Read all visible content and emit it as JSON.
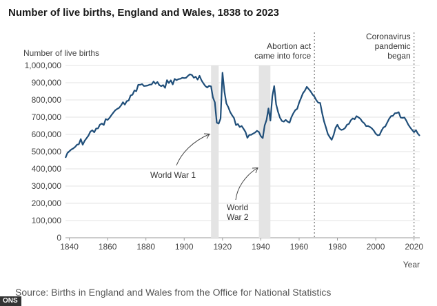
{
  "chart_data": {
    "type": "line",
    "title": "Number of live births, England and Wales, 1838 to 2023",
    "ylabel": "Number of live births",
    "xlabel": "Year",
    "xlim": [
      1838,
      2023
    ],
    "ylim": [
      0,
      1000000
    ],
    "x_ticks": [
      1840,
      1860,
      1880,
      1900,
      1920,
      1940,
      1960,
      1980,
      2000,
      2020
    ],
    "x_tick_labels": [
      "1840",
      "1860",
      "1880",
      "1900",
      "1920",
      "1940",
      "1960",
      "1980",
      "2000",
      "2020"
    ],
    "y_ticks": [
      0,
      100000,
      200000,
      300000,
      400000,
      500000,
      600000,
      700000,
      800000,
      900000,
      1000000
    ],
    "y_tick_labels": [
      "0",
      "100,000",
      "200,000",
      "300,000",
      "400,000",
      "500,000",
      "600,000",
      "700,000",
      "800,000",
      "900,000",
      "1,000,000"
    ],
    "grid": "horizontal",
    "line_color": "#1f4e79",
    "series": [
      {
        "x": [
          1838,
          1839,
          1840,
          1841,
          1842,
          1843,
          1844,
          1845,
          1846,
          1847,
          1848,
          1849,
          1850,
          1851,
          1852,
          1853,
          1854,
          1855,
          1856,
          1857,
          1858,
          1859,
          1860,
          1861,
          1862,
          1863,
          1864,
          1865,
          1866,
          1867,
          1868,
          1869,
          1870,
          1871,
          1872,
          1873,
          1874,
          1875,
          1876,
          1877,
          1878,
          1879,
          1880,
          1881,
          1882,
          1883,
          1884,
          1885,
          1886,
          1887,
          1888,
          1889,
          1890,
          1891,
          1892,
          1893,
          1894,
          1895,
          1896,
          1897,
          1898,
          1899,
          1900,
          1901,
          1902,
          1903,
          1904,
          1905,
          1906,
          1907,
          1908,
          1909,
          1910,
          1911,
          1912,
          1913,
          1914,
          1915,
          1916,
          1917,
          1918,
          1919,
          1920,
          1921,
          1922,
          1923,
          1924,
          1925,
          1926,
          1927,
          1928,
          1929,
          1930,
          1931,
          1932,
          1933,
          1934,
          1935,
          1936,
          1937,
          1938,
          1939,
          1940,
          1941,
          1942,
          1943,
          1944,
          1945,
          1946,
          1947,
          1948,
          1949,
          1950,
          1951,
          1952,
          1953,
          1954,
          1955,
          1956,
          1957,
          1958,
          1959,
          1960,
          1961,
          1962,
          1963,
          1964,
          1965,
          1966,
          1967,
          1968,
          1969,
          1970,
          1971,
          1972,
          1973,
          1974,
          1975,
          1976,
          1977,
          1978,
          1979,
          1980,
          1981,
          1982,
          1983,
          1984,
          1985,
          1986,
          1987,
          1988,
          1989,
          1990,
          1991,
          1992,
          1993,
          1994,
          1995,
          1996,
          1997,
          1998,
          1999,
          2000,
          2001,
          2002,
          2003,
          2004,
          2005,
          2006,
          2007,
          2008,
          2009,
          2010,
          2011,
          2012,
          2013,
          2014,
          2015,
          2016,
          2017,
          2018,
          2019,
          2020,
          2021,
          2022,
          2023
        ],
        "values": [
          464000,
          492000,
          502000,
          512000,
          518000,
          527000,
          540000,
          543000,
          573000,
          540000,
          563000,
          578000,
          593000,
          616000,
          624000,
          612000,
          634000,
          635000,
          657000,
          663000,
          655000,
          689000,
          684000,
          696000,
          712000,
          727000,
          740000,
          748000,
          754000,
          768000,
          787000,
          773000,
          793000,
          797000,
          826000,
          830000,
          855000,
          851000,
          888000,
          888000,
          892000,
          881000,
          882000,
          884000,
          889000,
          890000,
          907000,
          894000,
          904000,
          886000,
          880000,
          886000,
          870000,
          915000,
          898000,
          914000,
          890000,
          922000,
          915000,
          921000,
          923000,
          929000,
          927000,
          929000,
          940000,
          949000,
          945000,
          929000,
          935000,
          918000,
          940000,
          914000,
          897000,
          881000,
          872000,
          882000,
          879000,
          815000,
          786000,
          668000,
          663000,
          692000,
          958000,
          849000,
          780000,
          758000,
          730000,
          711000,
          695000,
          654000,
          660000,
          643000,
          649000,
          632000,
          614000,
          580000,
          597000,
          598000,
          605000,
          611000,
          621000,
          614000,
          590000,
          579000,
          652000,
          684000,
          751000,
          680000,
          821000,
          881000,
          775000,
          731000,
          697000,
          678000,
          674000,
          684000,
          674000,
          668000,
          700000,
          723000,
          741000,
          749000,
          785000,
          811000,
          839000,
          854000,
          876000,
          863000,
          850000,
          832000,
          819000,
          798000,
          784000,
          783000,
          725000,
          676000,
          640000,
          603000,
          584000,
          569000,
          596000,
          638000,
          656000,
          634000,
          626000,
          629000,
          637000,
          656000,
          661000,
          682000,
          693000,
          688000,
          706000,
          699000,
          690000,
          674000,
          665000,
          648000,
          649000,
          643000,
          635000,
          622000,
          604000,
          595000,
          597000,
          621000,
          640000,
          646000,
          669000,
          690000,
          706000,
          708000,
          723000,
          724000,
          729000,
          698000,
          696000,
          698000,
          679000,
          657000,
          640000,
          626000,
          613000,
          625000,
          605000,
          592000
        ]
      }
    ],
    "shaded_periods": [
      {
        "label": "World War 1",
        "start": 1914,
        "end": 1918
      },
      {
        "label": "World War 2",
        "start": 1939,
        "end": 1945
      }
    ],
    "markers": [
      {
        "label": "Abortion act came into force",
        "x": 1968,
        "lines": [
          "Abortion act",
          "came into force"
        ]
      },
      {
        "label": "Coronavirus pandemic began",
        "x": 2020,
        "lines": [
          "Coronavirus",
          "pandemic",
          "began"
        ]
      }
    ],
    "annotations": [
      {
        "id": "ww1",
        "lines": [
          "World War 1"
        ]
      },
      {
        "id": "ww2",
        "lines": [
          "World",
          "War 2"
        ]
      }
    ]
  },
  "source_text": "Source: Births in England and Wales from the Office for National Statistics",
  "badge_text": "ONS"
}
